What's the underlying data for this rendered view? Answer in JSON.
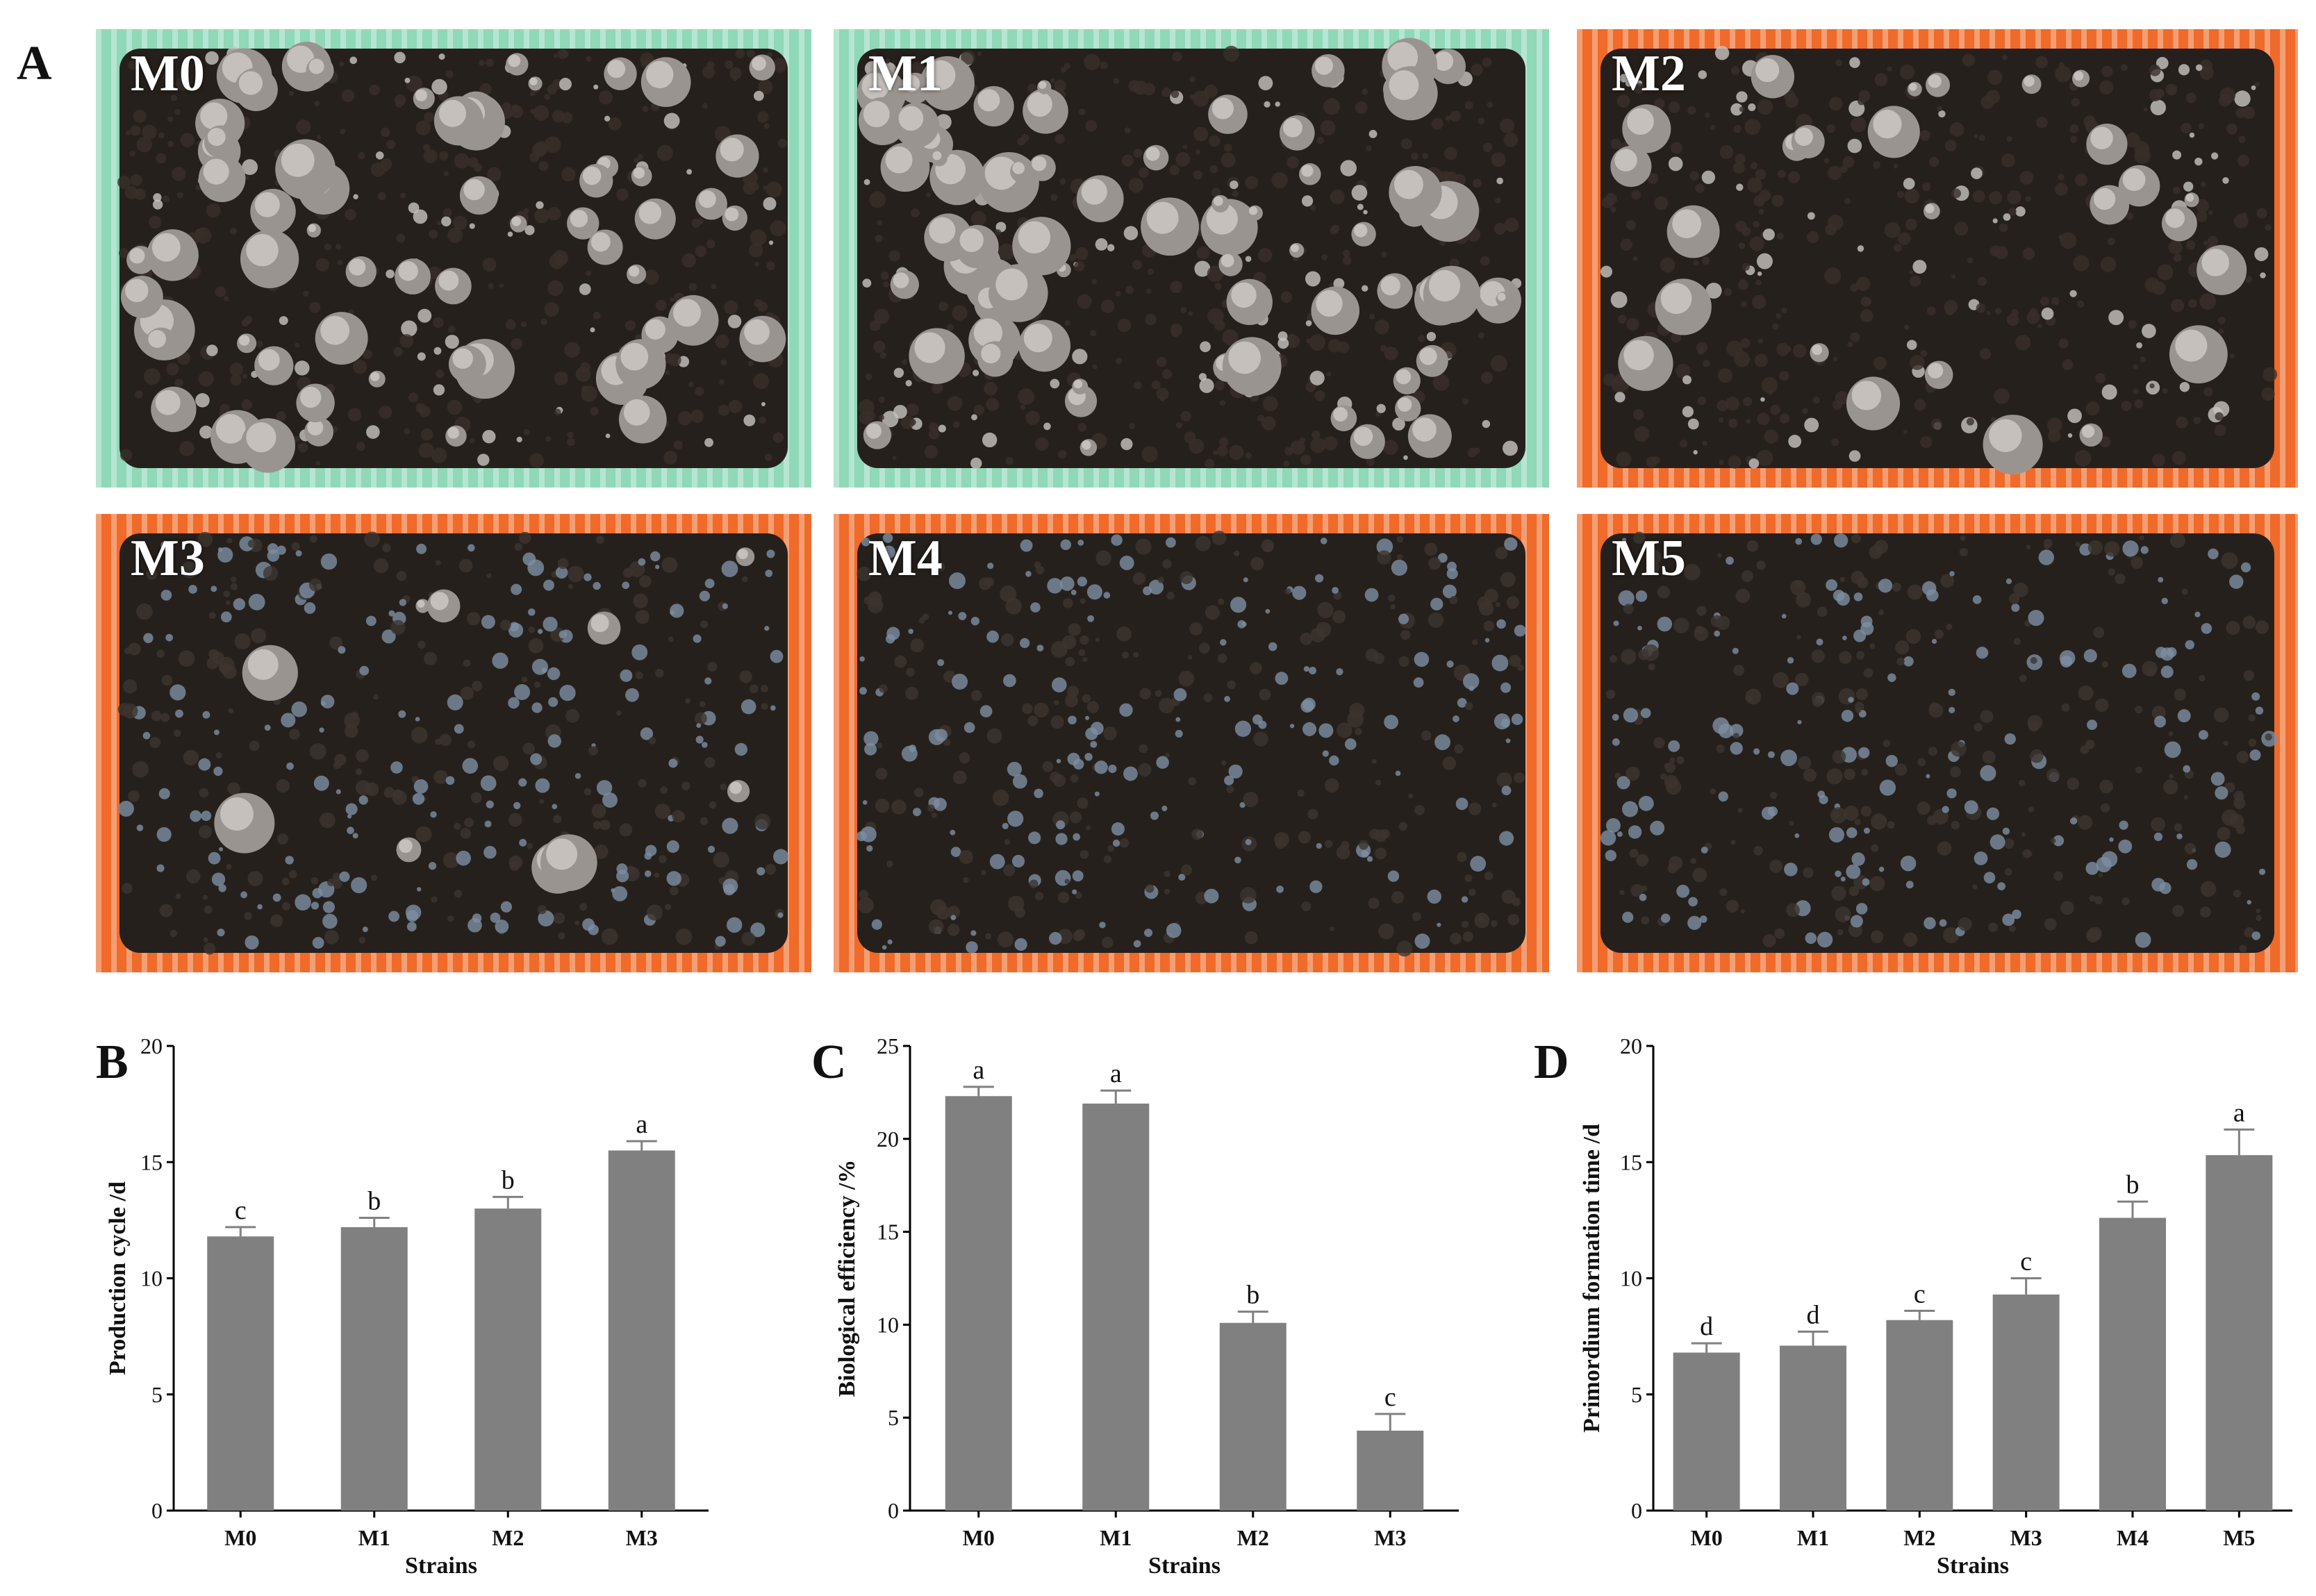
{
  "figure": {
    "panel_a": {
      "letter": "A",
      "photos": [
        {
          "label": "M0",
          "basket_color": "#8fd8b8"
        },
        {
          "label": "M1",
          "basket_color": "#8fd8b8"
        },
        {
          "label": "M2",
          "basket_color": "#f06a2a"
        },
        {
          "label": "M3",
          "basket_color": "#f06a2a"
        },
        {
          "label": "M4",
          "basket_color": "#f06a2a"
        },
        {
          "label": "M5",
          "basket_color": "#f06a2a"
        }
      ]
    }
  },
  "chart_data": [
    {
      "panel": "B",
      "type": "bar",
      "categories": [
        "M0",
        "M1",
        "M2",
        "M3"
      ],
      "values": [
        11.8,
        12.2,
        13.0,
        15.5
      ],
      "errors": [
        0.4,
        0.4,
        0.5,
        0.4
      ],
      "significance": [
        "c",
        "b",
        "b",
        "a"
      ],
      "xlabel": "Strains",
      "ylabel": "Production cycle /d",
      "ylim": [
        0,
        20
      ],
      "yticks": [
        "0",
        "5",
        "10",
        "15",
        "20"
      ],
      "bar_color": "#808080",
      "grid": false
    },
    {
      "panel": "C",
      "type": "bar",
      "categories": [
        "M0",
        "M1",
        "M2",
        "M3"
      ],
      "values": [
        22.3,
        21.9,
        10.1,
        4.3
      ],
      "errors": [
        0.5,
        0.7,
        0.6,
        0.9
      ],
      "significance": [
        "a",
        "a",
        "b",
        "c"
      ],
      "xlabel": "Strains",
      "ylabel": "Biological efficiency /%",
      "ylim": [
        0,
        25
      ],
      "yticks": [
        "0",
        "5",
        "10",
        "15",
        "20",
        "25"
      ],
      "bar_color": "#808080",
      "grid": false
    },
    {
      "panel": "D",
      "type": "bar",
      "categories": [
        "M0",
        "M1",
        "M2",
        "M3",
        "M4",
        "M5"
      ],
      "values": [
        6.8,
        7.1,
        8.2,
        9.3,
        12.6,
        15.3
      ],
      "errors": [
        0.4,
        0.6,
        0.4,
        0.7,
        0.7,
        1.1
      ],
      "significance": [
        "d",
        "d",
        "c",
        "c",
        "b",
        "a"
      ],
      "xlabel": "Strains",
      "ylabel": "Primordium formation time /d",
      "ylim": [
        0,
        20
      ],
      "yticks": [
        "0",
        "5",
        "10",
        "15",
        "20"
      ],
      "bar_color": "#808080",
      "grid": false
    }
  ]
}
